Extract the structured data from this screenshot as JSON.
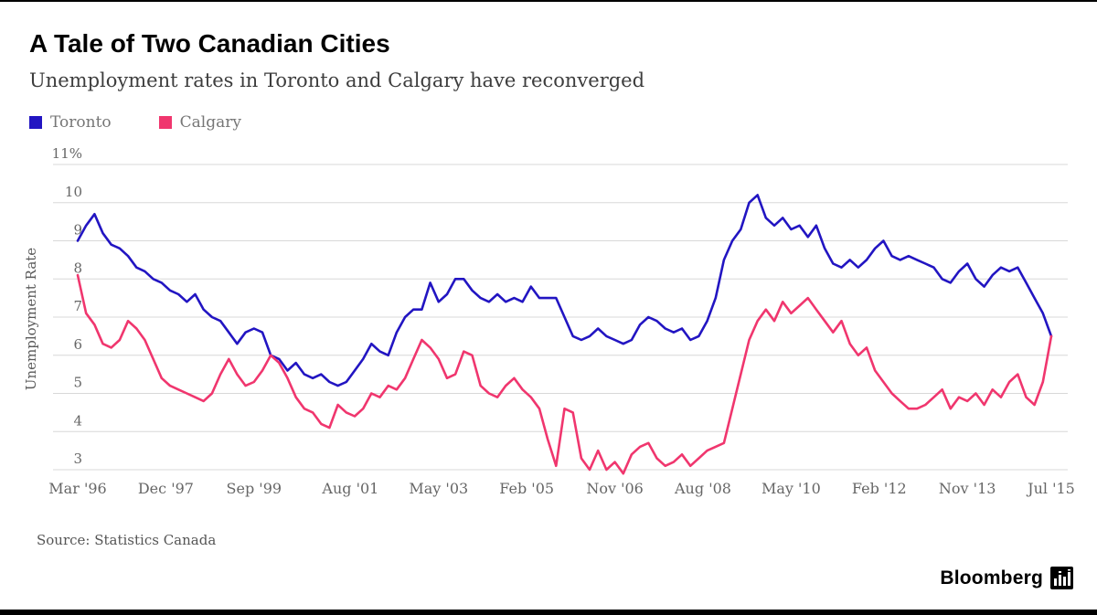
{
  "header": {
    "title": "A Tale of Two Canadian Cities",
    "subtitle": "Unemployment rates in Toronto and Calgary have reconverged"
  },
  "legend": [
    {
      "label": "Toronto",
      "color": "#2215c2"
    },
    {
      "label": "Calgary",
      "color": "#f0366e"
    }
  ],
  "source": "Source: Statistics Canada",
  "brand": {
    "name": "Bloomberg"
  },
  "colors": {
    "grid": "#d8d8d8",
    "axis_text": "#666666",
    "toronto": "#2215c2",
    "calgary": "#f0366e"
  },
  "chart_data": {
    "type": "line",
    "title": "A Tale of Two Canadian Cities",
    "subtitle": "Unemployment rates in Toronto and Calgary have reconverged",
    "xlabel": "",
    "ylabel": "Unemployment Rate",
    "ylim": [
      3,
      11
    ],
    "yticks": [
      3,
      4,
      5,
      6,
      7,
      8,
      9,
      10,
      11
    ],
    "ytick_top_label": "11%",
    "grid": "horizontal",
    "legend_position": "top-left",
    "x_unit": "months since Mar 1996 (values sampled every 2 months)",
    "xlim_months": [
      0,
      232
    ],
    "xticks": [
      {
        "label": "Mar '96",
        "month": 0
      },
      {
        "label": "Dec '97",
        "month": 21
      },
      {
        "label": "Sep '99",
        "month": 42
      },
      {
        "label": "Aug '01",
        "month": 65
      },
      {
        "label": "May '03",
        "month": 86
      },
      {
        "label": "Feb '05",
        "month": 107
      },
      {
        "label": "Nov '06",
        "month": 128
      },
      {
        "label": "Aug '08",
        "month": 149
      },
      {
        "label": "May '10",
        "month": 170
      },
      {
        "label": "Feb '12",
        "month": 191
      },
      {
        "label": "Nov '13",
        "month": 212
      },
      {
        "label": "Jul '15",
        "month": 232
      }
    ],
    "series": [
      {
        "name": "Toronto",
        "color": "#2215c2",
        "step_months": 2,
        "values": [
          9.0,
          9.4,
          9.7,
          9.2,
          8.9,
          8.8,
          8.6,
          8.3,
          8.2,
          8.0,
          7.9,
          7.7,
          7.6,
          7.4,
          7.6,
          7.2,
          7.0,
          6.9,
          6.6,
          6.3,
          6.6,
          6.7,
          6.6,
          6.0,
          5.9,
          5.6,
          5.8,
          5.5,
          5.4,
          5.5,
          5.3,
          5.2,
          5.3,
          5.6,
          5.9,
          6.3,
          6.1,
          6.0,
          6.6,
          7.0,
          7.2,
          7.2,
          7.9,
          7.4,
          7.6,
          8.0,
          8.0,
          7.7,
          7.5,
          7.4,
          7.6,
          7.4,
          7.5,
          7.4,
          7.8,
          7.5,
          7.5,
          7.5,
          7.0,
          6.5,
          6.4,
          6.5,
          6.7,
          6.5,
          6.4,
          6.3,
          6.4,
          6.8,
          7.0,
          6.9,
          6.7,
          6.6,
          6.7,
          6.4,
          6.5,
          6.9,
          7.5,
          8.5,
          9.0,
          9.3,
          10.0,
          10.2,
          9.6,
          9.4,
          9.6,
          9.3,
          9.4,
          9.1,
          9.4,
          8.8,
          8.4,
          8.3,
          8.5,
          8.3,
          8.5,
          8.8,
          9.0,
          8.6,
          8.5,
          8.6,
          8.5,
          8.4,
          8.3,
          8.0,
          7.9,
          8.2,
          8.4,
          8.0,
          7.8,
          8.1,
          8.3,
          8.2,
          8.3,
          7.9,
          7.5,
          7.1,
          6.5
        ]
      },
      {
        "name": "Calgary",
        "color": "#f0366e",
        "step_months": 2,
        "values": [
          8.1,
          7.1,
          6.8,
          6.3,
          6.2,
          6.4,
          6.9,
          6.7,
          6.4,
          5.9,
          5.4,
          5.2,
          5.1,
          5.0,
          4.9,
          4.8,
          5.0,
          5.5,
          5.9,
          5.5,
          5.2,
          5.3,
          5.6,
          6.0,
          5.8,
          5.4,
          4.9,
          4.6,
          4.5,
          4.2,
          4.1,
          4.7,
          4.5,
          4.4,
          4.6,
          5.0,
          4.9,
          5.2,
          5.1,
          5.4,
          5.9,
          6.4,
          6.2,
          5.9,
          5.4,
          5.5,
          6.1,
          6.0,
          5.2,
          5.0,
          4.9,
          5.2,
          5.4,
          5.1,
          4.9,
          4.6,
          3.8,
          3.1,
          4.6,
          4.5,
          3.3,
          3.0,
          3.5,
          3.0,
          3.2,
          2.9,
          3.4,
          3.6,
          3.7,
          3.3,
          3.1,
          3.2,
          3.4,
          3.1,
          3.3,
          3.5,
          3.6,
          3.7,
          4.6,
          5.5,
          6.4,
          6.9,
          7.2,
          6.9,
          7.4,
          7.1,
          7.3,
          7.5,
          7.2,
          6.9,
          6.6,
          6.9,
          6.3,
          6.0,
          6.2,
          5.6,
          5.3,
          5.0,
          4.8,
          4.6,
          4.6,
          4.7,
          4.9,
          5.1,
          4.6,
          4.9,
          4.8,
          5.0,
          4.7,
          5.1,
          4.9,
          5.3,
          5.5,
          4.9,
          4.7,
          5.3,
          6.5
        ]
      }
    ]
  }
}
